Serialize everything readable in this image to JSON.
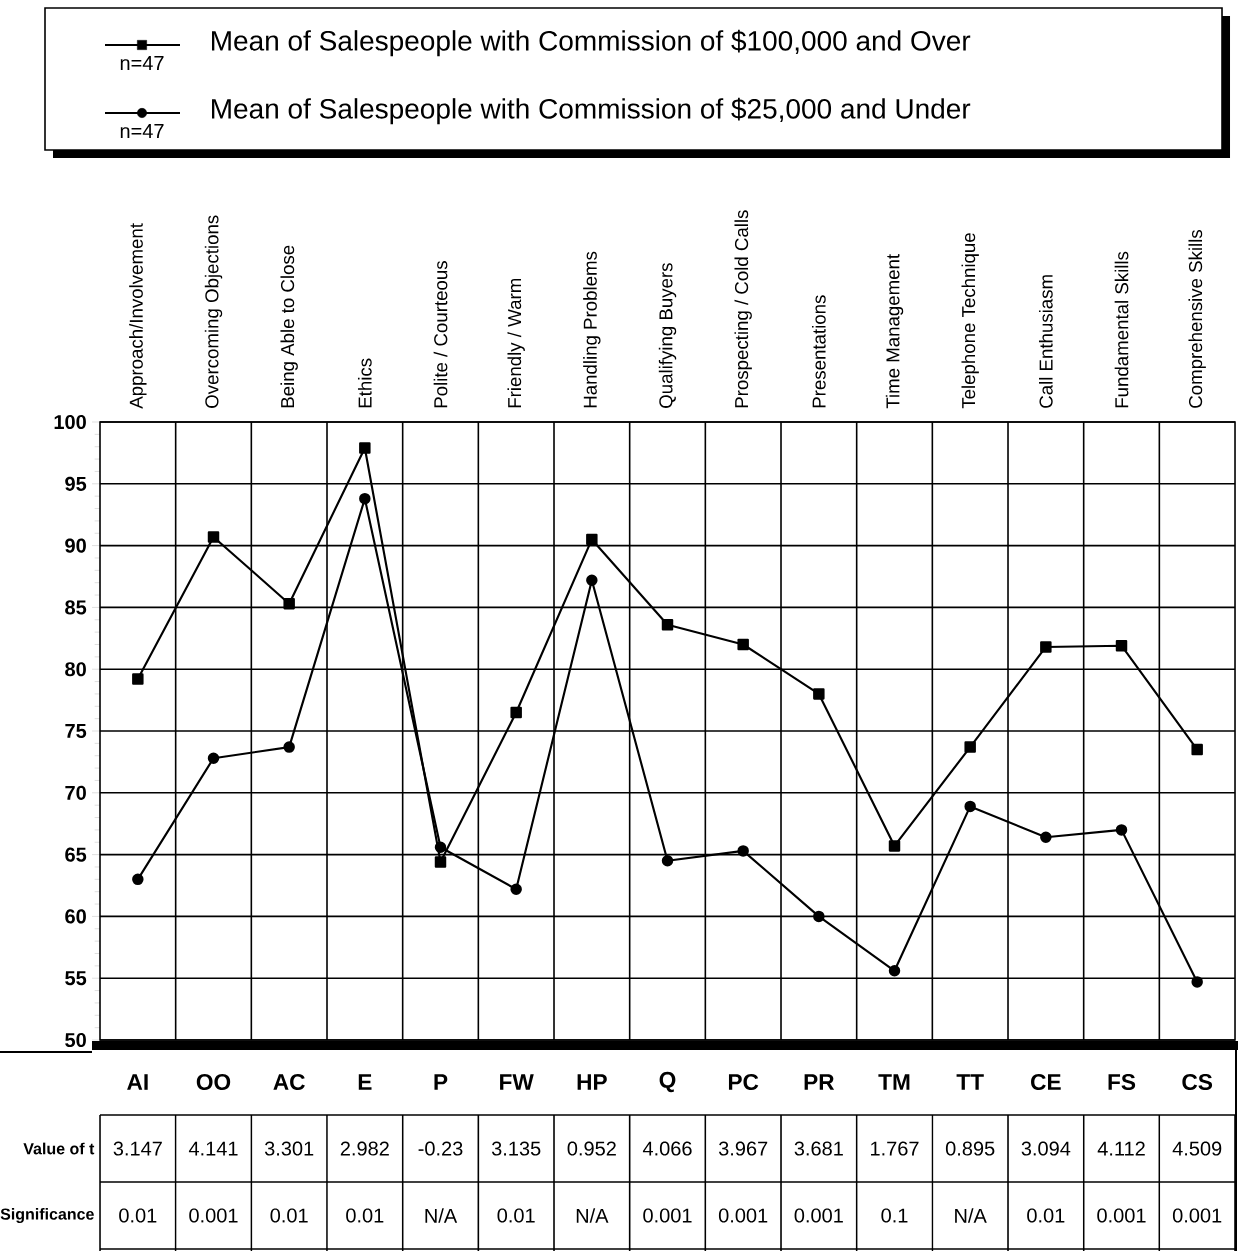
{
  "chart_data": [
    {
      "type": "line",
      "categories": [
        "Approach/Involvement",
        "Overcoming Objections",
        "Being Able to Close",
        "Ethics",
        "Polite / Courteous",
        "Friendly / Warm",
        "Handling Problems",
        "Qualifying Buyers",
        "Prospecting / Cold Calls",
        "Presentations",
        "Time Management",
        "Telephone Technique",
        "Call Enthusiasm",
        "Fundamental Skills",
        "Comprehensive Skills"
      ],
      "series": [
        {
          "name": "Mean of Salespeople with Commission of $100,000 and Over",
          "color": "#000000",
          "marker": "square",
          "values": [
            79.2,
            90.7,
            85.3,
            97.9,
            64.4,
            76.5,
            90.5,
            83.6,
            82.0,
            78.0,
            65.7,
            73.7,
            81.8,
            81.9,
            73.5
          ]
        },
        {
          "name": "Mean of Salespeople with Commission of $25,000 and Under",
          "color": "#000000",
          "marker": "circle",
          "values": [
            63.0,
            72.8,
            73.7,
            93.8,
            65.6,
            62.2,
            87.2,
            64.5,
            65.3,
            60.0,
            55.6,
            68.9,
            66.4,
            67.0,
            54.7
          ]
        }
      ],
      "ylim": [
        50,
        100
      ],
      "yticks": [
        50,
        55,
        60,
        65,
        70,
        75,
        80,
        85,
        90,
        95,
        100
      ],
      "grid": true,
      "legend": "top",
      "line_style": "solid",
      "annotations": [
        "n=47",
        "n=47"
      ]
    },
    {
      "type": "other",
      "categories": [
        "AI",
        "OO",
        "AC",
        "E",
        "P",
        "FW",
        "HP",
        "Q",
        "PC",
        "PR",
        "TM",
        "TT",
        "CE",
        "FS",
        "CS"
      ],
      "y_categories": [
        "Value of t",
        "Significance"
      ],
      "cell_labels": [
        [
          "3.147",
          "4.141",
          "3.301",
          "2.982",
          "-0.23",
          "3.135",
          "0.952",
          "4.066",
          "3.967",
          "3.681",
          "1.767",
          "0.895",
          "3.094",
          "4.112",
          "4.509"
        ],
        [
          "0.01",
          "0.001",
          "0.01",
          "0.01",
          "N/A",
          "0.01",
          "N/A",
          "0.001",
          "0.001",
          "0.001",
          "0.1",
          "N/A",
          "0.01",
          "0.001",
          "0.001"
        ]
      ]
    }
  ]
}
